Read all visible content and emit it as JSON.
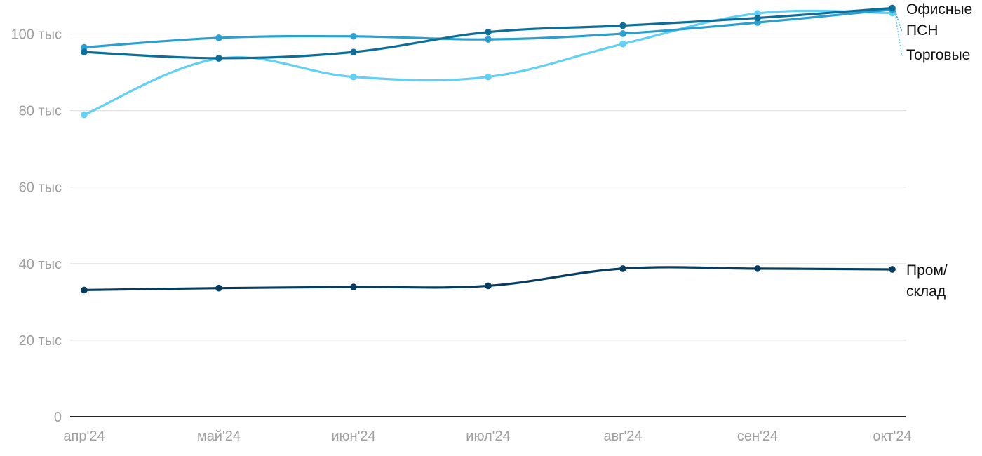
{
  "chart_data": {
    "type": "line",
    "title": "",
    "xlabel": "",
    "ylabel": "",
    "categories": [
      "апр'24",
      "май'24",
      "июн'24",
      "июл'24",
      "авг'24",
      "сен'24",
      "окт'24"
    ],
    "y_ticks": [
      {
        "value": 0,
        "label": "0"
      },
      {
        "value": 20000,
        "label": "20 тыс"
      },
      {
        "value": 40000,
        "label": "40 тыс"
      },
      {
        "value": 60000,
        "label": "60 тыс"
      },
      {
        "value": 80000,
        "label": "80 тыс"
      },
      {
        "value": 100000,
        "label": "100 тыс"
      }
    ],
    "ylim": [
      0,
      108000
    ],
    "grid": true,
    "legend": "direct labels at right end of lines",
    "series": [
      {
        "key": "office",
        "name": "Офисные",
        "color": "#0d6e99",
        "values": [
          95300,
          93700,
          95300,
          100500,
          102200,
          104200,
          106800
        ]
      },
      {
        "key": "psn",
        "name": "ПСН",
        "color": "#2a9fd0",
        "values": [
          96500,
          99000,
          99400,
          98600,
          100100,
          103000,
          106400
        ]
      },
      {
        "key": "retail",
        "name": "Торговые",
        "color": "#62d0f5",
        "values": [
          78900,
          93600,
          88800,
          88800,
          97400,
          105400,
          105500
        ]
      },
      {
        "key": "industrial",
        "name": "Пром/\nсклад",
        "color": "#083d5f",
        "values": [
          33100,
          33600,
          33900,
          34200,
          38700,
          38700,
          38500
        ]
      }
    ]
  }
}
